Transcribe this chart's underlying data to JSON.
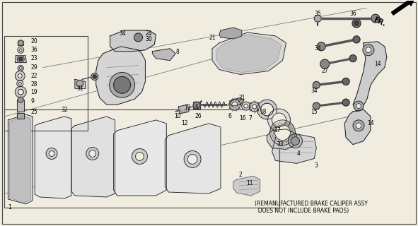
{
  "bg_color": "#f0ece0",
  "fig_width": 5.91,
  "fig_height": 3.2,
  "dpi": 100,
  "note_text": "(REMANUFACTURED BRAKE CALIPER ASSY\n  DOES NOT INCLUDE BRAKE PADS)",
  "fr_label": "FR.",
  "line_color": "#1a1a1a",
  "fill_light": "#e8e8e8",
  "fill_mid": "#c8c8c8",
  "fill_dark": "#888888"
}
